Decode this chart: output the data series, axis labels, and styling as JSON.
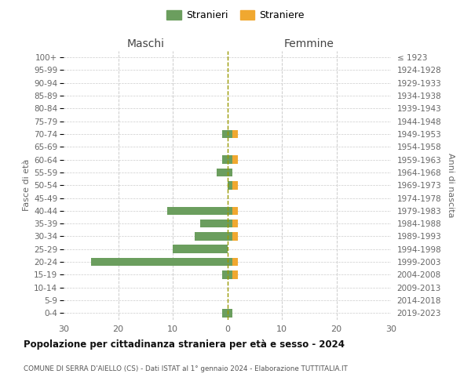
{
  "age_groups": [
    "100+",
    "95-99",
    "90-94",
    "85-89",
    "80-84",
    "75-79",
    "70-74",
    "65-69",
    "60-64",
    "55-59",
    "50-54",
    "45-49",
    "40-44",
    "35-39",
    "30-34",
    "25-29",
    "20-24",
    "15-19",
    "10-14",
    "5-9",
    "0-4"
  ],
  "birth_years": [
    "≤ 1923",
    "1924-1928",
    "1929-1933",
    "1934-1938",
    "1939-1943",
    "1944-1948",
    "1949-1953",
    "1954-1958",
    "1959-1963",
    "1964-1968",
    "1969-1973",
    "1974-1978",
    "1979-1983",
    "1984-1988",
    "1989-1993",
    "1994-1998",
    "1999-2003",
    "2004-2008",
    "2009-2013",
    "2014-2018",
    "2019-2023"
  ],
  "maschi_stranieri": [
    0,
    0,
    0,
    0,
    0,
    0,
    1,
    0,
    1,
    2,
    0,
    0,
    11,
    5,
    6,
    10,
    25,
    1,
    0,
    0,
    1
  ],
  "maschi_straniere": [
    0,
    0,
    0,
    0,
    0,
    0,
    0,
    0,
    0,
    0,
    0,
    0,
    0,
    0,
    0,
    0,
    0,
    0,
    0,
    0,
    0
  ],
  "femmine_stranieri": [
    0,
    0,
    0,
    0,
    0,
    0,
    1,
    0,
    1,
    1,
    1,
    0,
    1,
    1,
    1,
    0,
    1,
    1,
    0,
    0,
    1
  ],
  "femmine_straniere": [
    0,
    0,
    0,
    0,
    0,
    0,
    1,
    0,
    1,
    0,
    1,
    0,
    1,
    1,
    1,
    0,
    1,
    1,
    0,
    0,
    0
  ],
  "color_stranieri": "#6b9e5e",
  "color_straniere": "#f0a830",
  "bg_color": "#ffffff",
  "grid_color": "#cccccc",
  "dashed_line_color": "#999900",
  "title": "Popolazione per cittadinanza straniera per età e sesso - 2024",
  "subtitle": "COMUNE DI SERRA D'AIELLO (CS) - Dati ISTAT al 1° gennaio 2024 - Elaborazione TUTTITALIA.IT",
  "label_maschi": "Maschi",
  "label_femmine": "Femmine",
  "ylabel_left": "Fasce di età",
  "ylabel_right": "Anni di nascita",
  "legend_stranieri": "Stranieri",
  "legend_straniere": "Straniere",
  "xlim": 30
}
